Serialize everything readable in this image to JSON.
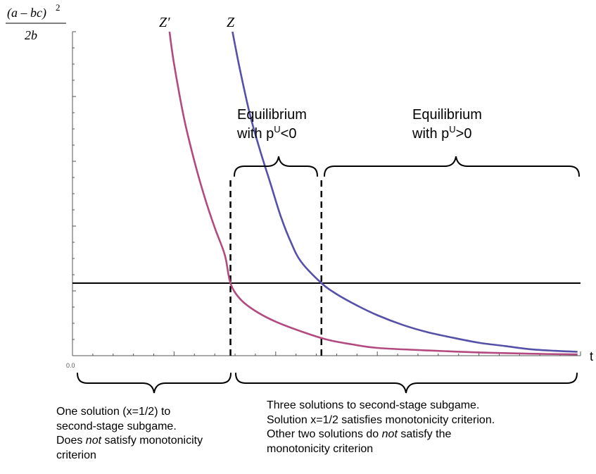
{
  "chart_data": {
    "type": "line",
    "ylabel_numerator": "(a – bc)",
    "ylabel_exponent": "2",
    "ylabel_denominator": "2b",
    "xlabel": "t",
    "x_origin_tick_label": "0.0",
    "xlim": [
      0,
      1
    ],
    "ylim": [
      0,
      1
    ],
    "threshold_level": 0.224,
    "series": [
      {
        "name": "Z′",
        "color": "#b2497f",
        "points": [
          [
            0.191,
            1.0
          ],
          [
            0.2,
            0.9
          ],
          [
            0.22,
            0.73
          ],
          [
            0.24,
            0.6
          ],
          [
            0.26,
            0.49
          ],
          [
            0.28,
            0.395
          ],
          [
            0.3,
            0.31
          ],
          [
            0.311,
            0.224
          ],
          [
            0.33,
            0.175
          ],
          [
            0.36,
            0.138
          ],
          [
            0.4,
            0.105
          ],
          [
            0.45,
            0.075
          ],
          [
            0.5,
            0.05
          ],
          [
            0.55,
            0.035
          ],
          [
            0.6,
            0.024
          ],
          [
            0.7,
            0.016
          ],
          [
            0.8,
            0.01
          ],
          [
            0.9,
            0.006
          ],
          [
            0.994,
            0.004
          ]
        ]
      },
      {
        "name": "Z",
        "color": "#5550a8",
        "points": [
          [
            0.315,
            1.0
          ],
          [
            0.33,
            0.88
          ],
          [
            0.35,
            0.74
          ],
          [
            0.37,
            0.63
          ],
          [
            0.39,
            0.53
          ],
          [
            0.41,
            0.43
          ],
          [
            0.43,
            0.35
          ],
          [
            0.45,
            0.29
          ],
          [
            0.49,
            0.224
          ],
          [
            0.52,
            0.19
          ],
          [
            0.56,
            0.155
          ],
          [
            0.6,
            0.125
          ],
          [
            0.65,
            0.095
          ],
          [
            0.7,
            0.072
          ],
          [
            0.75,
            0.055
          ],
          [
            0.8,
            0.04
          ],
          [
            0.85,
            0.03
          ],
          [
            0.9,
            0.02
          ],
          [
            0.95,
            0.015
          ],
          [
            0.994,
            0.012
          ]
        ]
      }
    ],
    "dashed_lines_at": [
      0.311,
      0.49
    ]
  },
  "labels": {
    "eq_neg_line1": "Equilibrium",
    "eq_neg_line2_prefix": "with p",
    "eq_neg_sup": "U",
    "eq_neg_suffix": "<0",
    "eq_pos_line1": "Equilibrium",
    "eq_pos_line2_prefix": "with p",
    "eq_pos_sup": "U",
    "eq_pos_suffix": ">0"
  },
  "notes": {
    "left_line1": "One solution (x=1/2) to",
    "left_line2": "second-stage subgame.",
    "left_line3_pre": "Does ",
    "left_line3_em": "not",
    "left_line3_post": " satisfy monotonicity",
    "left_line4": "criterion",
    "right_line1": "Three solutions to second-stage subgame.",
    "right_line2": "Solution x=1/2 satisfies monotonicity criterion.",
    "right_line3_pre": "Other two solutions do ",
    "right_line3_em": "not",
    "right_line3_post": " satisfy the",
    "right_line4": "monotonicity criterion"
  }
}
